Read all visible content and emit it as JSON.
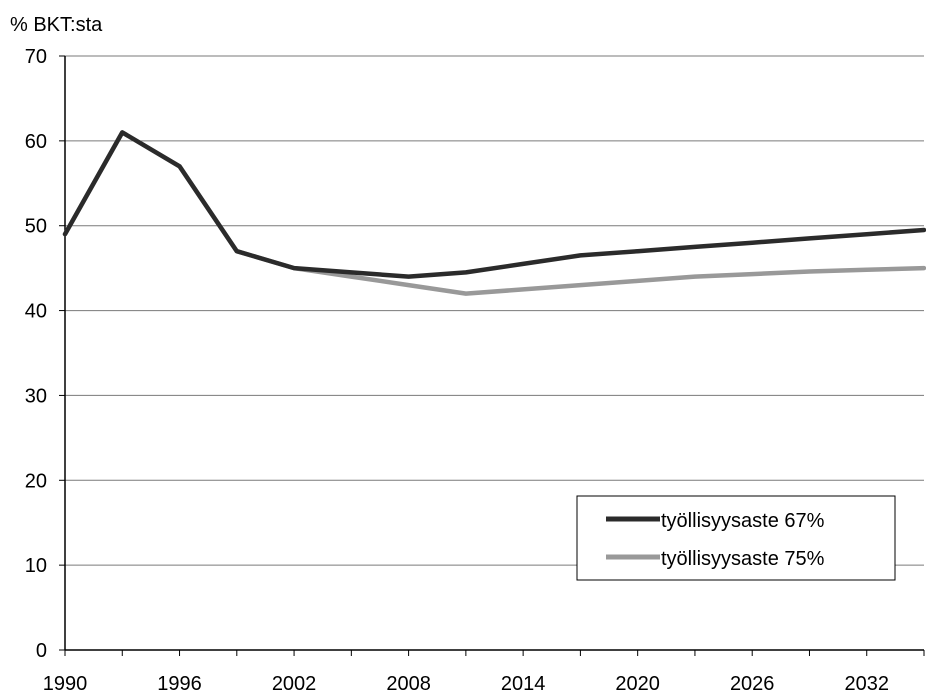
{
  "chart_data": {
    "type": "line",
    "ylabel": "% BKT:sta",
    "xlim": [
      1990,
      2035
    ],
    "ylim": [
      0,
      70
    ],
    "x_ticks": [
      1990,
      1996,
      2002,
      2008,
      2014,
      2020,
      2026,
      2032
    ],
    "y_ticks": [
      0,
      10,
      20,
      30,
      40,
      50,
      60,
      70
    ],
    "grid": "horizontal",
    "legend_position": "bottom-right",
    "x": [
      1990,
      1993,
      1996,
      1999,
      2002,
      2005,
      2008,
      2011,
      2014,
      2017,
      2020,
      2023,
      2026,
      2029,
      2032,
      2035
    ],
    "series": [
      {
        "name": "työllisyysaste 67%",
        "color": "#2b2b2b",
        "values": [
          49,
          61,
          57,
          47,
          45,
          44.5,
          44,
          44.5,
          45.5,
          46.5,
          47,
          47.5,
          48,
          48.5,
          49,
          49.5
        ]
      },
      {
        "name": "työllisyysaste 75%",
        "color": "#999999",
        "values": [
          49,
          61,
          57,
          47,
          45,
          44,
          43,
          42,
          42.5,
          43,
          43.5,
          44,
          44.3,
          44.6,
          44.8,
          45
        ]
      }
    ]
  }
}
